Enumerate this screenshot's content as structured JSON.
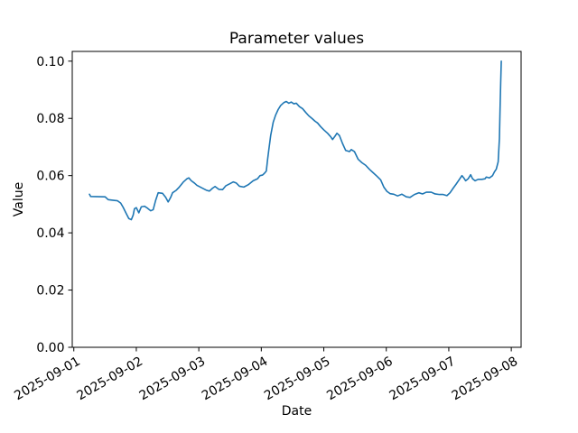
{
  "chart_data": {
    "type": "line",
    "title": "Parameter values",
    "xlabel": "Date",
    "ylabel": "Value",
    "grid": false,
    "legend": null,
    "line_color": "#1f77b4",
    "axis_color": "#000000",
    "background_color": "#ffffff",
    "xlim_days": [
      -0.025,
      7.157
    ],
    "ylim": [
      0,
      0.1034
    ],
    "x_ticks": {
      "days": [
        0,
        1,
        2,
        3,
        4,
        5,
        6,
        7
      ],
      "labels": [
        "2025-09-01",
        "2025-09-02",
        "2025-09-03",
        "2025-09-04",
        "2025-09-05",
        "2025-09-06",
        "2025-09-07",
        "2025-09-08"
      ]
    },
    "y_ticks": {
      "values": [
        0.0,
        0.02,
        0.04,
        0.06,
        0.08,
        0.1
      ],
      "labels": [
        "0.00",
        "0.02",
        "0.04",
        "0.06",
        "0.08",
        "0.10"
      ]
    },
    "x_unit": "days since 2025-09-01 00:00",
    "series": [
      {
        "name": "Parameter value",
        "color": "#1f77b4",
        "points": [
          [
            0.25,
            0.0535
          ],
          [
            0.27,
            0.0527
          ],
          [
            0.5,
            0.0526
          ],
          [
            0.55,
            0.0516
          ],
          [
            0.62,
            0.0514
          ],
          [
            0.7,
            0.0512
          ],
          [
            0.75,
            0.0504
          ],
          [
            0.79,
            0.0489
          ],
          [
            0.84,
            0.0467
          ],
          [
            0.88,
            0.045
          ],
          [
            0.92,
            0.0446
          ],
          [
            0.95,
            0.0462
          ],
          [
            0.97,
            0.0484
          ],
          [
            1.0,
            0.0488
          ],
          [
            1.04,
            0.047
          ],
          [
            1.08,
            0.0491
          ],
          [
            1.13,
            0.0493
          ],
          [
            1.18,
            0.0486
          ],
          [
            1.23,
            0.0477
          ],
          [
            1.27,
            0.0481
          ],
          [
            1.31,
            0.0514
          ],
          [
            1.35,
            0.054
          ],
          [
            1.42,
            0.0538
          ],
          [
            1.47,
            0.0524
          ],
          [
            1.51,
            0.0508
          ],
          [
            1.55,
            0.0524
          ],
          [
            1.58,
            0.054
          ],
          [
            1.64,
            0.0549
          ],
          [
            1.68,
            0.0558
          ],
          [
            1.75,
            0.0577
          ],
          [
            1.81,
            0.0589
          ],
          [
            1.84,
            0.0592
          ],
          [
            1.88,
            0.0582
          ],
          [
            1.93,
            0.0574
          ],
          [
            1.97,
            0.0566
          ],
          [
            2.05,
            0.0557
          ],
          [
            2.12,
            0.0549
          ],
          [
            2.17,
            0.0546
          ],
          [
            2.22,
            0.0556
          ],
          [
            2.26,
            0.0562
          ],
          [
            2.32,
            0.0552
          ],
          [
            2.38,
            0.0551
          ],
          [
            2.43,
            0.0564
          ],
          [
            2.5,
            0.0572
          ],
          [
            2.55,
            0.0578
          ],
          [
            2.6,
            0.0574
          ],
          [
            2.65,
            0.0563
          ],
          [
            2.72,
            0.056
          ],
          [
            2.79,
            0.0568
          ],
          [
            2.87,
            0.0582
          ],
          [
            2.94,
            0.0589
          ],
          [
            2.98,
            0.06
          ],
          [
            3.02,
            0.0602
          ],
          [
            3.05,
            0.0608
          ],
          [
            3.08,
            0.0616
          ],
          [
            3.1,
            0.0655
          ],
          [
            3.12,
            0.069
          ],
          [
            3.15,
            0.074
          ],
          [
            3.19,
            0.0786
          ],
          [
            3.23,
            0.0812
          ],
          [
            3.27,
            0.0831
          ],
          [
            3.31,
            0.0845
          ],
          [
            3.36,
            0.0855
          ],
          [
            3.4,
            0.0859
          ],
          [
            3.44,
            0.0853
          ],
          [
            3.48,
            0.0857
          ],
          [
            3.52,
            0.0851
          ],
          [
            3.56,
            0.0853
          ],
          [
            3.61,
            0.0841
          ],
          [
            3.66,
            0.0834
          ],
          [
            3.71,
            0.0821
          ],
          [
            3.76,
            0.0809
          ],
          [
            3.81,
            0.08
          ],
          [
            3.86,
            0.079
          ],
          [
            3.9,
            0.0784
          ],
          [
            3.95,
            0.0771
          ],
          [
            4.0,
            0.076
          ],
          [
            4.06,
            0.0748
          ],
          [
            4.11,
            0.0736
          ],
          [
            4.14,
            0.0726
          ],
          [
            4.18,
            0.0738
          ],
          [
            4.21,
            0.0748
          ],
          [
            4.25,
            0.074
          ],
          [
            4.3,
            0.0712
          ],
          [
            4.35,
            0.0688
          ],
          [
            4.41,
            0.0684
          ],
          [
            4.44,
            0.0691
          ],
          [
            4.49,
            0.0684
          ],
          [
            4.55,
            0.0657
          ],
          [
            4.61,
            0.0645
          ],
          [
            4.67,
            0.0636
          ],
          [
            4.73,
            0.0622
          ],
          [
            4.79,
            0.061
          ],
          [
            4.85,
            0.0598
          ],
          [
            4.91,
            0.0585
          ],
          [
            4.96,
            0.056
          ],
          [
            5.01,
            0.0545
          ],
          [
            5.06,
            0.0537
          ],
          [
            5.12,
            0.0535
          ],
          [
            5.18,
            0.0529
          ],
          [
            5.25,
            0.0535
          ],
          [
            5.32,
            0.0526
          ],
          [
            5.38,
            0.0524
          ],
          [
            5.45,
            0.0534
          ],
          [
            5.52,
            0.054
          ],
          [
            5.58,
            0.0536
          ],
          [
            5.64,
            0.0542
          ],
          [
            5.72,
            0.0542
          ],
          [
            5.78,
            0.0536
          ],
          [
            5.85,
            0.0534
          ],
          [
            5.91,
            0.0534
          ],
          [
            5.97,
            0.053
          ],
          [
            6.02,
            0.054
          ],
          [
            6.07,
            0.0556
          ],
          [
            6.12,
            0.0571
          ],
          [
            6.17,
            0.0587
          ],
          [
            6.21,
            0.06
          ],
          [
            6.24,
            0.0592
          ],
          [
            6.27,
            0.0582
          ],
          [
            6.31,
            0.0589
          ],
          [
            6.35,
            0.0603
          ],
          [
            6.38,
            0.0589
          ],
          [
            6.42,
            0.0582
          ],
          [
            6.47,
            0.0587
          ],
          [
            6.53,
            0.0587
          ],
          [
            6.58,
            0.0589
          ],
          [
            6.6,
            0.0595
          ],
          [
            6.65,
            0.0592
          ],
          [
            6.7,
            0.06
          ],
          [
            6.73,
            0.0613
          ],
          [
            6.76,
            0.0623
          ],
          [
            6.79,
            0.0648
          ],
          [
            6.81,
            0.073
          ],
          [
            6.82,
            0.083
          ],
          [
            6.83,
            0.092
          ],
          [
            6.84,
            0.1
          ]
        ]
      }
    ]
  }
}
